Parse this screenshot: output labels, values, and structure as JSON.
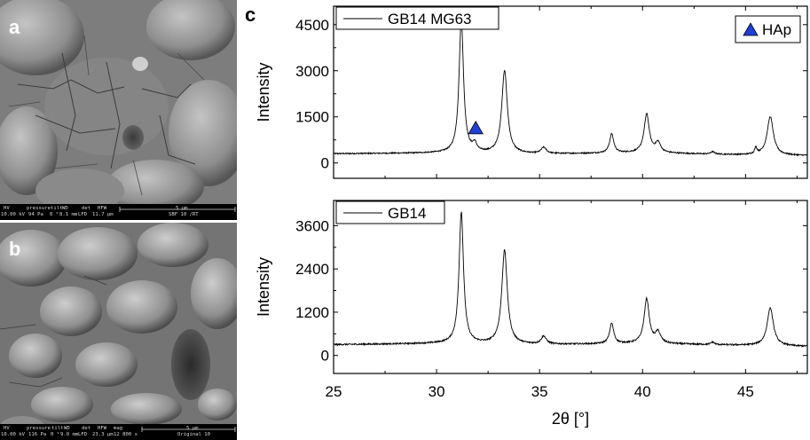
{
  "panels": {
    "a": {
      "letter": "a",
      "info": {
        "hv_label": "HV",
        "hv_value": "10.00 kV",
        "pressure_label": "pressure",
        "pressure_value": "94 Pa",
        "tilt_label": "tilt",
        "tilt_value": "0 °",
        "wd_label": "WD",
        "wd_value": "8.1 mm",
        "det_label": "det",
        "det_value": "LFD",
        "hfw_label": "HFW",
        "hfw_value": "11.7 µm",
        "scale": "5 µm",
        "sample": "SBF 10 /RT"
      }
    },
    "b": {
      "letter": "b",
      "info": {
        "hv_label": "HV",
        "hv_value": "10.00 kV",
        "pressure_label": "pressure",
        "pressure_value": "116 Pa",
        "tilt_label": "tilt",
        "tilt_value": "0 °",
        "wd_label": "WD",
        "wd_value": "9.0 mm",
        "det_label": "det",
        "det_value": "LFD",
        "hfw_label": "HFW",
        "hfw_value": "23.3 µm",
        "mag_label": "mag",
        "mag_value": "12 800 x",
        "scale": "5 µm",
        "sample": "Original 10"
      }
    },
    "c": {
      "letter": "c"
    }
  },
  "chart_data": [
    {
      "type": "line",
      "position": "top",
      "series": [
        {
          "name": "GB14 MG63",
          "color": "#000000"
        }
      ],
      "marker_legend": {
        "label": "HAp",
        "symbol": "triangle-up",
        "color": "#1f3fd6"
      },
      "marker_points": [
        {
          "x": 31.9,
          "y": 1150
        }
      ],
      "ylabel": "Intensity",
      "yticks": [
        0,
        1500,
        3000,
        4500
      ],
      "ylim": [
        -500,
        5100
      ],
      "xlim": [
        25,
        48
      ],
      "baseline": [
        [
          25,
          300
        ],
        [
          30,
          320
        ],
        [
          35,
          290
        ],
        [
          40,
          330
        ],
        [
          45,
          260
        ],
        [
          48,
          240
        ]
      ],
      "peaks": [
        {
          "x": 31.2,
          "height": 4350,
          "width": 0.13
        },
        {
          "x": 31.85,
          "height": 250,
          "width": 0.12
        },
        {
          "x": 33.3,
          "height": 2700,
          "width": 0.16
        },
        {
          "x": 35.2,
          "height": 200,
          "width": 0.15
        },
        {
          "x": 38.5,
          "height": 620,
          "width": 0.12
        },
        {
          "x": 40.2,
          "height": 1250,
          "width": 0.15
        },
        {
          "x": 40.75,
          "height": 320,
          "width": 0.15
        },
        {
          "x": 43.4,
          "height": 80,
          "width": 0.1
        },
        {
          "x": 45.5,
          "height": 200,
          "width": 0.07
        },
        {
          "x": 46.2,
          "height": 1250,
          "width": 0.18
        }
      ]
    },
    {
      "type": "line",
      "position": "bottom",
      "series": [
        {
          "name": "GB14",
          "color": "#000000"
        }
      ],
      "ylabel": "Intensity",
      "xlabel": "2θ [°]",
      "yticks": [
        0,
        1200,
        2400,
        3600
      ],
      "ylim": [
        -500,
        4300
      ],
      "xlim": [
        25,
        48
      ],
      "xticks": [
        25,
        30,
        35,
        40,
        45
      ],
      "baseline": [
        [
          25,
          300
        ],
        [
          30,
          330
        ],
        [
          35,
          300
        ],
        [
          40,
          330
        ],
        [
          45,
          280
        ],
        [
          48,
          250
        ]
      ],
      "peaks": [
        {
          "x": 31.2,
          "height": 3650,
          "width": 0.13
        },
        {
          "x": 33.3,
          "height": 2600,
          "width": 0.16
        },
        {
          "x": 35.2,
          "height": 220,
          "width": 0.15
        },
        {
          "x": 38.5,
          "height": 560,
          "width": 0.12
        },
        {
          "x": 40.2,
          "height": 1230,
          "width": 0.15
        },
        {
          "x": 40.75,
          "height": 300,
          "width": 0.15
        },
        {
          "x": 43.4,
          "height": 70,
          "width": 0.1
        },
        {
          "x": 46.2,
          "height": 1050,
          "width": 0.18
        }
      ]
    }
  ]
}
